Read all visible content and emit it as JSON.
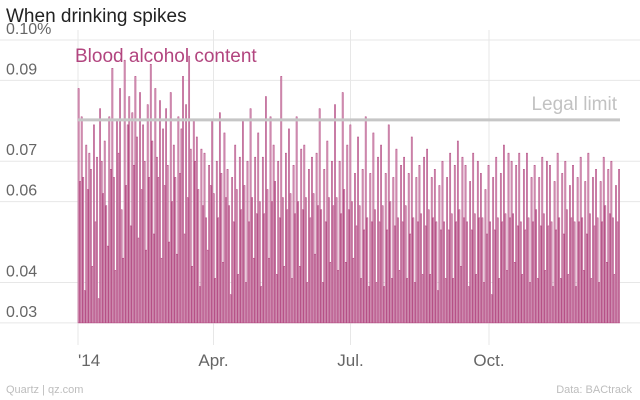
{
  "header": {
    "title": "When drinking spikes"
  },
  "footer": {
    "source_left": "Quartz | qz.com",
    "source_right": "Data: BACtrack"
  },
  "colors": {
    "bar": "#b2457f",
    "bar_fill": "#dcb0c8",
    "grid": "#e7e7e7",
    "reference": "#c6c6c6",
    "tick_text": "#666666",
    "reference_text": "#c2c2c2"
  },
  "chart_data": {
    "type": "bar",
    "title": "When drinking spikes",
    "xlabel": "",
    "ylabel": "",
    "ylim": [
      0.0275,
      0.1
    ],
    "y_ticks": [
      0.03,
      0.04,
      0.06,
      0.07,
      0.09,
      0.1
    ],
    "y_tick_labels": [
      "0.03",
      "0.04",
      "0.06",
      "0.07",
      "0.09",
      "0.10%"
    ],
    "x_range": [
      "2014-01-01",
      "2014-12-27"
    ],
    "x_ticks": [
      {
        "date": "2014-01-01",
        "label": "'14"
      },
      {
        "date": "2014-04-01",
        "label": "Apr."
      },
      {
        "date": "2014-07-01",
        "label": "Jul."
      },
      {
        "date": "2014-10-01",
        "label": "Oct."
      }
    ],
    "grid": true,
    "bar_baseline": 0.03,
    "series": [
      {
        "name": "Blood alcohol content",
        "start_date": "2014-01-01",
        "interval_days": 1,
        "values": [
          0.088,
          0.065,
          0.081,
          0.066,
          0.038,
          0.074,
          0.063,
          0.072,
          0.068,
          0.044,
          0.079,
          0.055,
          0.071,
          0.036,
          0.083,
          0.07,
          0.062,
          0.075,
          0.059,
          0.049,
          0.081,
          0.068,
          0.093,
          0.066,
          0.043,
          0.08,
          0.072,
          0.088,
          0.058,
          0.046,
          0.095,
          0.064,
          0.079,
          0.086,
          0.054,
          0.082,
          0.069,
          0.091,
          0.076,
          0.051,
          0.087,
          0.063,
          0.079,
          0.07,
          0.048,
          0.084,
          0.066,
          0.094,
          0.075,
          0.052,
          0.088,
          0.071,
          0.066,
          0.085,
          0.046,
          0.078,
          0.064,
          0.083,
          0.069,
          0.05,
          0.087,
          0.06,
          0.074,
          0.066,
          0.047,
          0.081,
          0.067,
          0.078,
          0.091,
          0.052,
          0.084,
          0.061,
          0.096,
          0.073,
          0.044,
          0.08,
          0.07,
          0.076,
          0.063,
          0.039,
          0.073,
          0.059,
          0.072,
          0.056,
          0.048,
          0.069,
          0.064,
          0.08,
          0.062,
          0.041,
          0.07,
          0.056,
          0.082,
          0.067,
          0.045,
          0.077,
          0.061,
          0.068,
          0.059,
          0.037,
          0.066,
          0.055,
          0.074,
          0.063,
          0.042,
          0.071,
          0.058,
          0.08,
          0.064,
          0.04,
          0.07,
          0.055,
          0.083,
          0.061,
          0.046,
          0.071,
          0.057,
          0.077,
          0.06,
          0.039,
          0.071,
          0.057,
          0.086,
          0.063,
          0.046,
          0.081,
          0.06,
          0.074,
          0.065,
          0.042,
          0.07,
          0.056,
          0.091,
          0.061,
          0.044,
          0.072,
          0.058,
          0.078,
          0.062,
          0.041,
          0.069,
          0.057,
          0.081,
          0.06,
          0.044,
          0.073,
          0.058,
          0.074,
          0.061,
          0.04,
          0.068,
          0.056,
          0.071,
          0.062,
          0.047,
          0.072,
          0.059,
          0.083,
          0.058,
          0.04,
          0.068,
          0.055,
          0.075,
          0.061,
          0.045,
          0.07,
          0.059,
          0.084,
          0.061,
          0.043,
          0.07,
          0.057,
          0.087,
          0.063,
          0.045,
          0.074,
          0.058,
          0.079,
          0.06,
          0.046,
          0.067,
          0.054,
          0.076,
          0.059,
          0.041,
          0.068,
          0.053,
          0.081,
          0.056,
          0.039,
          0.067,
          0.055,
          0.077,
          0.058,
          0.04,
          0.071,
          0.055,
          0.074,
          0.059,
          0.039,
          0.067,
          0.053,
          0.079,
          0.06,
          0.041,
          0.066,
          0.054,
          0.073,
          0.056,
          0.043,
          0.069,
          0.055,
          0.071,
          0.059,
          0.041,
          0.067,
          0.052,
          0.076,
          0.056,
          0.04,
          0.066,
          0.055,
          0.069,
          0.057,
          0.042,
          0.071,
          0.054,
          0.073,
          0.058,
          0.042,
          0.066,
          0.056,
          0.068,
          0.055,
          0.038,
          0.064,
          0.053,
          0.07,
          0.055,
          0.041,
          0.066,
          0.053,
          0.072,
          0.057,
          0.041,
          0.069,
          0.055,
          0.075,
          0.058,
          0.044,
          0.071,
          0.056,
          0.069,
          0.055,
          0.039,
          0.065,
          0.053,
          0.072,
          0.057,
          0.042,
          0.07,
          0.056,
          0.067,
          0.056,
          0.04,
          0.063,
          0.052,
          0.069,
          0.055,
          0.037,
          0.066,
          0.053,
          0.071,
          0.056,
          0.041,
          0.067,
          0.055,
          0.074,
          0.057,
          0.043,
          0.072,
          0.056,
          0.07,
          0.057,
          0.045,
          0.069,
          0.054,
          0.072,
          0.055,
          0.042,
          0.068,
          0.053,
          0.072,
          0.056,
          0.04,
          0.066,
          0.055,
          0.069,
          0.058,
          0.041,
          0.066,
          0.054,
          0.071,
          0.057,
          0.043,
          0.07,
          0.054,
          0.069,
          0.055,
          0.039,
          0.065,
          0.053,
          0.072,
          0.056,
          0.041,
          0.067,
          0.052,
          0.07,
          0.058,
          0.042,
          0.064,
          0.056,
          0.069,
          0.055,
          0.039,
          0.066,
          0.055,
          0.071,
          0.056,
          0.043,
          0.065,
          0.052,
          0.072,
          0.057,
          0.041,
          0.066,
          0.054,
          0.068,
          0.056,
          0.04,
          0.065,
          0.055,
          0.071,
          0.059,
          0.045,
          0.068,
          0.057,
          0.07,
          0.056,
          0.042,
          0.064,
          0.055,
          0.068
        ]
      }
    ],
    "annotations": [
      {
        "text": "Blood alcohol content",
        "target": "series"
      },
      {
        "text": "Legal limit",
        "y": 0.08
      }
    ],
    "reference_line": {
      "y": 0.08,
      "label": "Legal limit"
    }
  }
}
